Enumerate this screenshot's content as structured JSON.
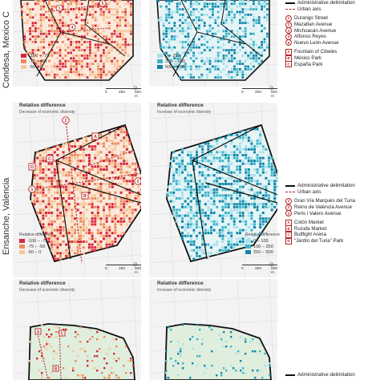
{
  "row_labels": {
    "mexico": "Condesa, Mexico C",
    "valencia": "Ensanche, Valencia"
  },
  "valencia": {
    "left_panel": {
      "title": "Relative difference",
      "subtitle": "Decrease of economic diversity"
    },
    "right_panel": {
      "title": "Relative difference",
      "subtitle": "Increase of economic diversity"
    }
  },
  "bottom_row": {
    "left_panel": {
      "title": "Relative difference",
      "subtitle": "Decrease of economic diversity"
    },
    "right_panel": {
      "title": "Relative difference",
      "subtitle": "Increase of economic diversity"
    }
  },
  "decrease_legend": {
    "title": "Relative difference",
    "items": [
      {
        "label": "-100 – -75",
        "color": "#d7263d"
      },
      {
        "label": "-75 – -50",
        "color": "#ee8a5a"
      },
      {
        "label": "-50 – 0",
        "color": "#f6c79a"
      }
    ]
  },
  "increase_legend": {
    "title": "Relative difference",
    "items": [
      {
        "label": "0 – 250",
        "color": "#a8e0ea"
      },
      {
        "label": "250 – 500",
        "color": "#3bb6cc"
      },
      {
        "label": "500 – 700",
        "color": "#0f86a8"
      }
    ]
  },
  "increase_legend_valencia": {
    "title": "Relative difference",
    "items": [
      {
        "label": "0 – 100",
        "color": "#a8e0ea"
      },
      {
        "label": "100 – 250",
        "color": "#3bb6cc"
      },
      {
        "label": "250 – 500",
        "color": "#0f86a8"
      }
    ]
  },
  "scale": {
    "zero": "0",
    "mid": "250",
    "end": "500 m"
  },
  "north_symbol": "⊙",
  "mexico_legend": {
    "admin": "Administrative delimitation",
    "axis": "Urban axis",
    "streets": [
      {
        "n": "1",
        "label": "Durango Street"
      },
      {
        "n": "2",
        "label": "Mazatlan Avenue"
      },
      {
        "n": "3",
        "label": "Michoacán Avenue"
      },
      {
        "n": "4",
        "label": "Alfonso Reyes"
      },
      {
        "n": "5",
        "label": "Nuevo León Avenue"
      }
    ],
    "places": [
      {
        "n": "A",
        "label": "Fountain of Cibeles"
      },
      {
        "n": "B",
        "label": "México Park"
      },
      {
        "n": "C",
        "label": "España Park"
      }
    ]
  },
  "valencia_legend": {
    "admin": "Administrative delimitation",
    "axis": "Urban axis",
    "streets": [
      {
        "n": "1",
        "label": "Gran Vía Marqués del Turia"
      },
      {
        "n": "2",
        "label": "Reino de Valencia Avenue"
      },
      {
        "n": "3",
        "label": "Peris i Valero Avenue"
      }
    ],
    "places": [
      {
        "n": "A",
        "label": "Colón Market"
      },
      {
        "n": "B",
        "label": "Ruzafa Market"
      },
      {
        "n": "C",
        "label": "Bullfight Arena"
      },
      {
        "n": "D",
        "label": "“Jardín del Turia” Park"
      }
    ]
  },
  "bottom_legend": {
    "admin": "Administrative delimitation"
  },
  "map_markers": {
    "valencia_left": [
      "A",
      "B",
      "C",
      "D",
      "1",
      "2",
      "3"
    ],
    "mexico_left": [
      "1",
      "4",
      "5"
    ],
    "bottom_left": [
      "A",
      "B",
      "C"
    ]
  },
  "colors": {
    "admin": "#111111",
    "axis": "#b22222",
    "fill": "#fbe9dc",
    "fill_inc": "#e6f4f6",
    "marker": "#b22222",
    "green": "#dfeedd"
  }
}
